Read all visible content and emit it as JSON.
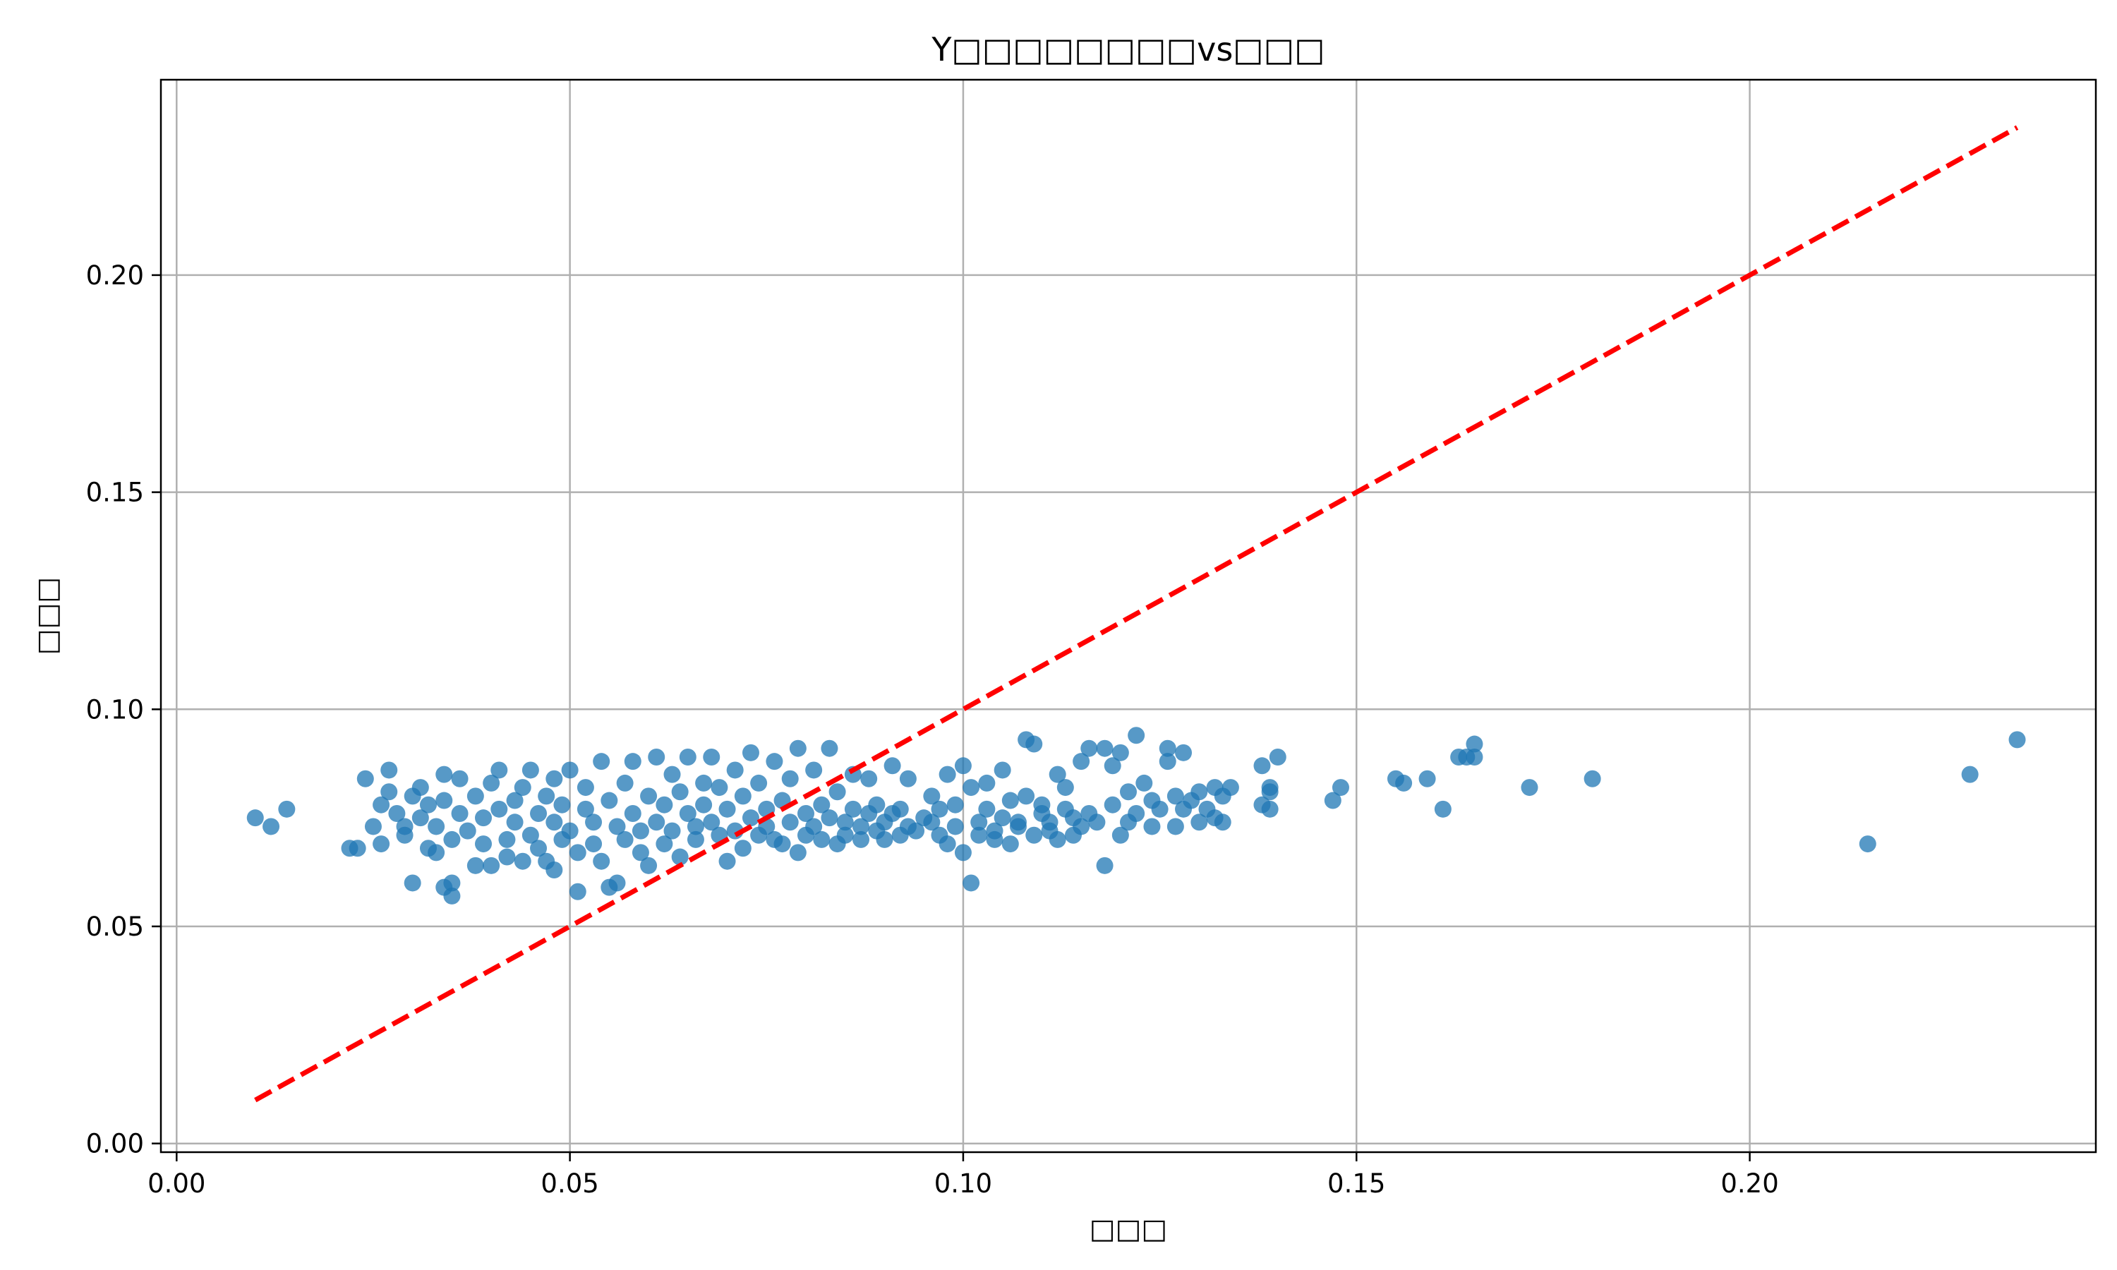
{
  "chart_data": {
    "type": "scatter",
    "title": "Y□□□□□□□□vs□□□",
    "xlabel": "□□□",
    "ylabel": "□□□",
    "xlim": [
      -0.002,
      0.244
    ],
    "ylim": [
      -0.002,
      0.245
    ],
    "xticks": [
      0.0,
      0.05,
      0.1,
      0.15,
      0.2
    ],
    "xtick_labels": [
      "0.00",
      "0.05",
      "0.10",
      "0.15",
      "0.20"
    ],
    "yticks": [
      0.0,
      0.05,
      0.1,
      0.15,
      0.2
    ],
    "ytick_labels": [
      "0.00",
      "0.05",
      "0.10",
      "0.15",
      "0.20"
    ],
    "grid": true,
    "legend": "none",
    "colors": {
      "points": "#1f77b4",
      "reference_line": "#ff0000",
      "grid": "#b0b0b0"
    },
    "reference_line": {
      "style": "dashed",
      "x": [
        0.01,
        0.234
      ],
      "y": [
        0.01,
        0.234
      ]
    },
    "points": [
      [
        0.01,
        0.075
      ],
      [
        0.012,
        0.073
      ],
      [
        0.014,
        0.077
      ],
      [
        0.022,
        0.068
      ],
      [
        0.023,
        0.068
      ],
      [
        0.024,
        0.084
      ],
      [
        0.025,
        0.073
      ],
      [
        0.026,
        0.069
      ],
      [
        0.026,
        0.078
      ],
      [
        0.027,
        0.086
      ],
      [
        0.027,
        0.081
      ],
      [
        0.028,
        0.076
      ],
      [
        0.029,
        0.073
      ],
      [
        0.029,
        0.071
      ],
      [
        0.03,
        0.08
      ],
      [
        0.03,
        0.06
      ],
      [
        0.031,
        0.082
      ],
      [
        0.031,
        0.075
      ],
      [
        0.032,
        0.068
      ],
      [
        0.032,
        0.078
      ],
      [
        0.033,
        0.073
      ],
      [
        0.033,
        0.067
      ],
      [
        0.034,
        0.085
      ],
      [
        0.034,
        0.079
      ],
      [
        0.034,
        0.059
      ],
      [
        0.035,
        0.057
      ],
      [
        0.035,
        0.06
      ],
      [
        0.035,
        0.07
      ],
      [
        0.036,
        0.076
      ],
      [
        0.036,
        0.084
      ],
      [
        0.037,
        0.072
      ],
      [
        0.038,
        0.064
      ],
      [
        0.038,
        0.08
      ],
      [
        0.039,
        0.075
      ],
      [
        0.039,
        0.069
      ],
      [
        0.04,
        0.064
      ],
      [
        0.04,
        0.083
      ],
      [
        0.041,
        0.077
      ],
      [
        0.041,
        0.086
      ],
      [
        0.042,
        0.07
      ],
      [
        0.042,
        0.066
      ],
      [
        0.043,
        0.079
      ],
      [
        0.043,
        0.074
      ],
      [
        0.044,
        0.065
      ],
      [
        0.044,
        0.082
      ],
      [
        0.045,
        0.086
      ],
      [
        0.045,
        0.071
      ],
      [
        0.046,
        0.076
      ],
      [
        0.046,
        0.068
      ],
      [
        0.047,
        0.08
      ],
      [
        0.047,
        0.065
      ],
      [
        0.048,
        0.074
      ],
      [
        0.048,
        0.063
      ],
      [
        0.048,
        0.084
      ],
      [
        0.049,
        0.07
      ],
      [
        0.049,
        0.078
      ],
      [
        0.05,
        0.086
      ],
      [
        0.05,
        0.072
      ],
      [
        0.051,
        0.067
      ],
      [
        0.051,
        0.058
      ],
      [
        0.052,
        0.077
      ],
      [
        0.052,
        0.082
      ],
      [
        0.053,
        0.074
      ],
      [
        0.053,
        0.069
      ],
      [
        0.054,
        0.088
      ],
      [
        0.054,
        0.065
      ],
      [
        0.055,
        0.079
      ],
      [
        0.055,
        0.059
      ],
      [
        0.056,
        0.073
      ],
      [
        0.056,
        0.06
      ],
      [
        0.057,
        0.083
      ],
      [
        0.057,
        0.07
      ],
      [
        0.058,
        0.076
      ],
      [
        0.058,
        0.088
      ],
      [
        0.059,
        0.072
      ],
      [
        0.059,
        0.067
      ],
      [
        0.06,
        0.08
      ],
      [
        0.06,
        0.064
      ],
      [
        0.061,
        0.089
      ],
      [
        0.061,
        0.074
      ],
      [
        0.062,
        0.078
      ],
      [
        0.062,
        0.069
      ],
      [
        0.063,
        0.085
      ],
      [
        0.063,
        0.072
      ],
      [
        0.064,
        0.066
      ],
      [
        0.064,
        0.081
      ],
      [
        0.065,
        0.076
      ],
      [
        0.065,
        0.089
      ],
      [
        0.066,
        0.073
      ],
      [
        0.066,
        0.07
      ],
      [
        0.067,
        0.083
      ],
      [
        0.067,
        0.078
      ],
      [
        0.068,
        0.089
      ],
      [
        0.068,
        0.074
      ],
      [
        0.069,
        0.071
      ],
      [
        0.069,
        0.082
      ],
      [
        0.07,
        0.065
      ],
      [
        0.07,
        0.077
      ],
      [
        0.071,
        0.086
      ],
      [
        0.071,
        0.072
      ],
      [
        0.072,
        0.08
      ],
      [
        0.072,
        0.068
      ],
      [
        0.073,
        0.075
      ],
      [
        0.073,
        0.09
      ],
      [
        0.074,
        0.071
      ],
      [
        0.074,
        0.083
      ],
      [
        0.075,
        0.077
      ],
      [
        0.075,
        0.073
      ],
      [
        0.076,
        0.088
      ],
      [
        0.076,
        0.07
      ],
      [
        0.077,
        0.079
      ],
      [
        0.077,
        0.069
      ],
      [
        0.078,
        0.084
      ],
      [
        0.078,
        0.074
      ],
      [
        0.079,
        0.067
      ],
      [
        0.079,
        0.091
      ],
      [
        0.08,
        0.076
      ],
      [
        0.08,
        0.071
      ],
      [
        0.081,
        0.086
      ],
      [
        0.081,
        0.073
      ],
      [
        0.082,
        0.078
      ],
      [
        0.082,
        0.07
      ],
      [
        0.083,
        0.091
      ],
      [
        0.083,
        0.075
      ],
      [
        0.084,
        0.069
      ],
      [
        0.084,
        0.081
      ],
      [
        0.085,
        0.074
      ],
      [
        0.085,
        0.071
      ],
      [
        0.086,
        0.085
      ],
      [
        0.086,
        0.077
      ],
      [
        0.087,
        0.07
      ],
      [
        0.087,
        0.073
      ],
      [
        0.088,
        0.084
      ],
      [
        0.088,
        0.076
      ],
      [
        0.089,
        0.072
      ],
      [
        0.089,
        0.078
      ],
      [
        0.09,
        0.07
      ],
      [
        0.09,
        0.074
      ],
      [
        0.091,
        0.087
      ],
      [
        0.091,
        0.076
      ],
      [
        0.092,
        0.071
      ],
      [
        0.092,
        0.077
      ],
      [
        0.093,
        0.073
      ],
      [
        0.093,
        0.084
      ],
      [
        0.094,
        0.072
      ],
      [
        0.095,
        0.075
      ],
      [
        0.096,
        0.08
      ],
      [
        0.096,
        0.074
      ],
      [
        0.097,
        0.071
      ],
      [
        0.097,
        0.077
      ],
      [
        0.098,
        0.085
      ],
      [
        0.098,
        0.069
      ],
      [
        0.099,
        0.073
      ],
      [
        0.099,
        0.078
      ],
      [
        0.1,
        0.087
      ],
      [
        0.1,
        0.067
      ],
      [
        0.101,
        0.06
      ],
      [
        0.101,
        0.082
      ],
      [
        0.102,
        0.074
      ],
      [
        0.102,
        0.071
      ],
      [
        0.103,
        0.077
      ],
      [
        0.103,
        0.083
      ],
      [
        0.104,
        0.072
      ],
      [
        0.104,
        0.07
      ],
      [
        0.105,
        0.075
      ],
      [
        0.105,
        0.086
      ],
      [
        0.106,
        0.069
      ],
      [
        0.106,
        0.079
      ],
      [
        0.107,
        0.074
      ],
      [
        0.107,
        0.073
      ],
      [
        0.108,
        0.093
      ],
      [
        0.108,
        0.08
      ],
      [
        0.109,
        0.092
      ],
      [
        0.109,
        0.071
      ],
      [
        0.11,
        0.076
      ],
      [
        0.11,
        0.078
      ],
      [
        0.111,
        0.072
      ],
      [
        0.111,
        0.074
      ],
      [
        0.112,
        0.085
      ],
      [
        0.112,
        0.07
      ],
      [
        0.113,
        0.077
      ],
      [
        0.113,
        0.082
      ],
      [
        0.114,
        0.071
      ],
      [
        0.114,
        0.075
      ],
      [
        0.115,
        0.088
      ],
      [
        0.115,
        0.073
      ],
      [
        0.116,
        0.091
      ],
      [
        0.116,
        0.076
      ],
      [
        0.117,
        0.074
      ],
      [
        0.118,
        0.064
      ],
      [
        0.118,
        0.091
      ],
      [
        0.119,
        0.078
      ],
      [
        0.119,
        0.087
      ],
      [
        0.12,
        0.09
      ],
      [
        0.12,
        0.071
      ],
      [
        0.121,
        0.081
      ],
      [
        0.121,
        0.074
      ],
      [
        0.122,
        0.094
      ],
      [
        0.122,
        0.076
      ],
      [
        0.123,
        0.083
      ],
      [
        0.124,
        0.073
      ],
      [
        0.124,
        0.079
      ],
      [
        0.125,
        0.077
      ],
      [
        0.126,
        0.091
      ],
      [
        0.126,
        0.088
      ],
      [
        0.127,
        0.08
      ],
      [
        0.127,
        0.073
      ],
      [
        0.128,
        0.09
      ],
      [
        0.128,
        0.077
      ],
      [
        0.129,
        0.079
      ],
      [
        0.13,
        0.081
      ],
      [
        0.13,
        0.074
      ],
      [
        0.131,
        0.077
      ],
      [
        0.132,
        0.082
      ],
      [
        0.132,
        0.075
      ],
      [
        0.133,
        0.08
      ],
      [
        0.133,
        0.074
      ],
      [
        0.134,
        0.082
      ],
      [
        0.138,
        0.087
      ],
      [
        0.138,
        0.078
      ],
      [
        0.139,
        0.082
      ],
      [
        0.139,
        0.081
      ],
      [
        0.139,
        0.077
      ],
      [
        0.14,
        0.089
      ],
      [
        0.147,
        0.079
      ],
      [
        0.148,
        0.082
      ],
      [
        0.155,
        0.084
      ],
      [
        0.156,
        0.083
      ],
      [
        0.159,
        0.084
      ],
      [
        0.161,
        0.077
      ],
      [
        0.163,
        0.089
      ],
      [
        0.164,
        0.089
      ],
      [
        0.165,
        0.092
      ],
      [
        0.165,
        0.089
      ],
      [
        0.172,
        0.082
      ],
      [
        0.18,
        0.084
      ],
      [
        0.215,
        0.069
      ],
      [
        0.228,
        0.085
      ],
      [
        0.234,
        0.093
      ]
    ]
  }
}
